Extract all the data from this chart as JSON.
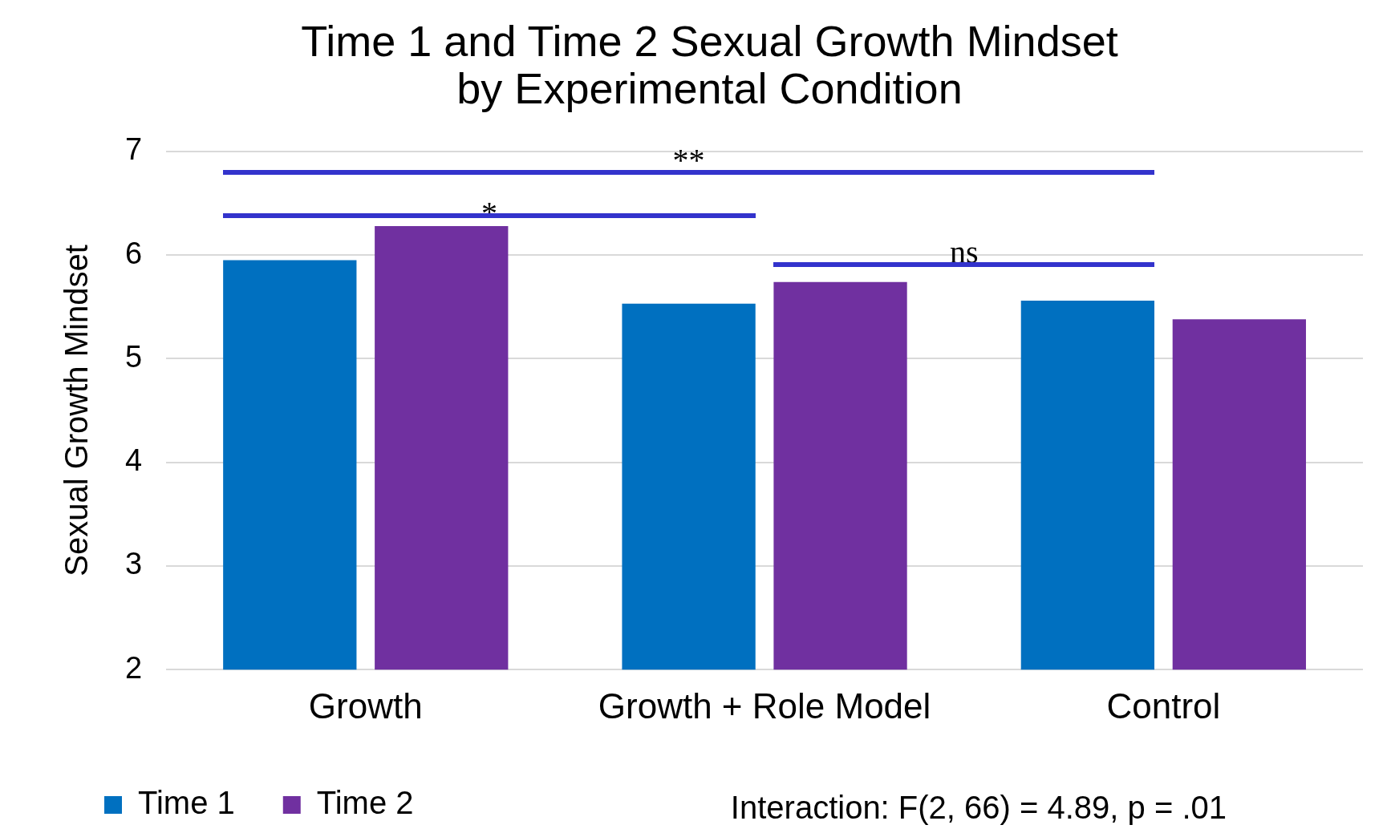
{
  "chart_data": {
    "type": "bar",
    "title": [
      "Time 1 and Time 2 Sexual Growth Mindset",
      "by Experimental Condition"
    ],
    "ylabel": "Sexual Growth Mindset",
    "categories": [
      "Growth",
      "Growth + Role Model",
      "Control"
    ],
    "series": [
      {
        "name": "Time 1",
        "color": "#0070c0",
        "values": [
          5.95,
          5.53,
          5.56
        ]
      },
      {
        "name": "Time 2",
        "color": "#7030a0",
        "values": [
          6.28,
          5.74,
          5.38
        ]
      }
    ],
    "ylim": [
      2,
      7
    ],
    "yticks": [
      2,
      3,
      4,
      5,
      6,
      7
    ],
    "grid": "y",
    "legend": "bottom left",
    "annotations": [
      "**",
      "*",
      "ns",
      "Interaction: F(2, 66) = 4.89, p = .01"
    ]
  }
}
